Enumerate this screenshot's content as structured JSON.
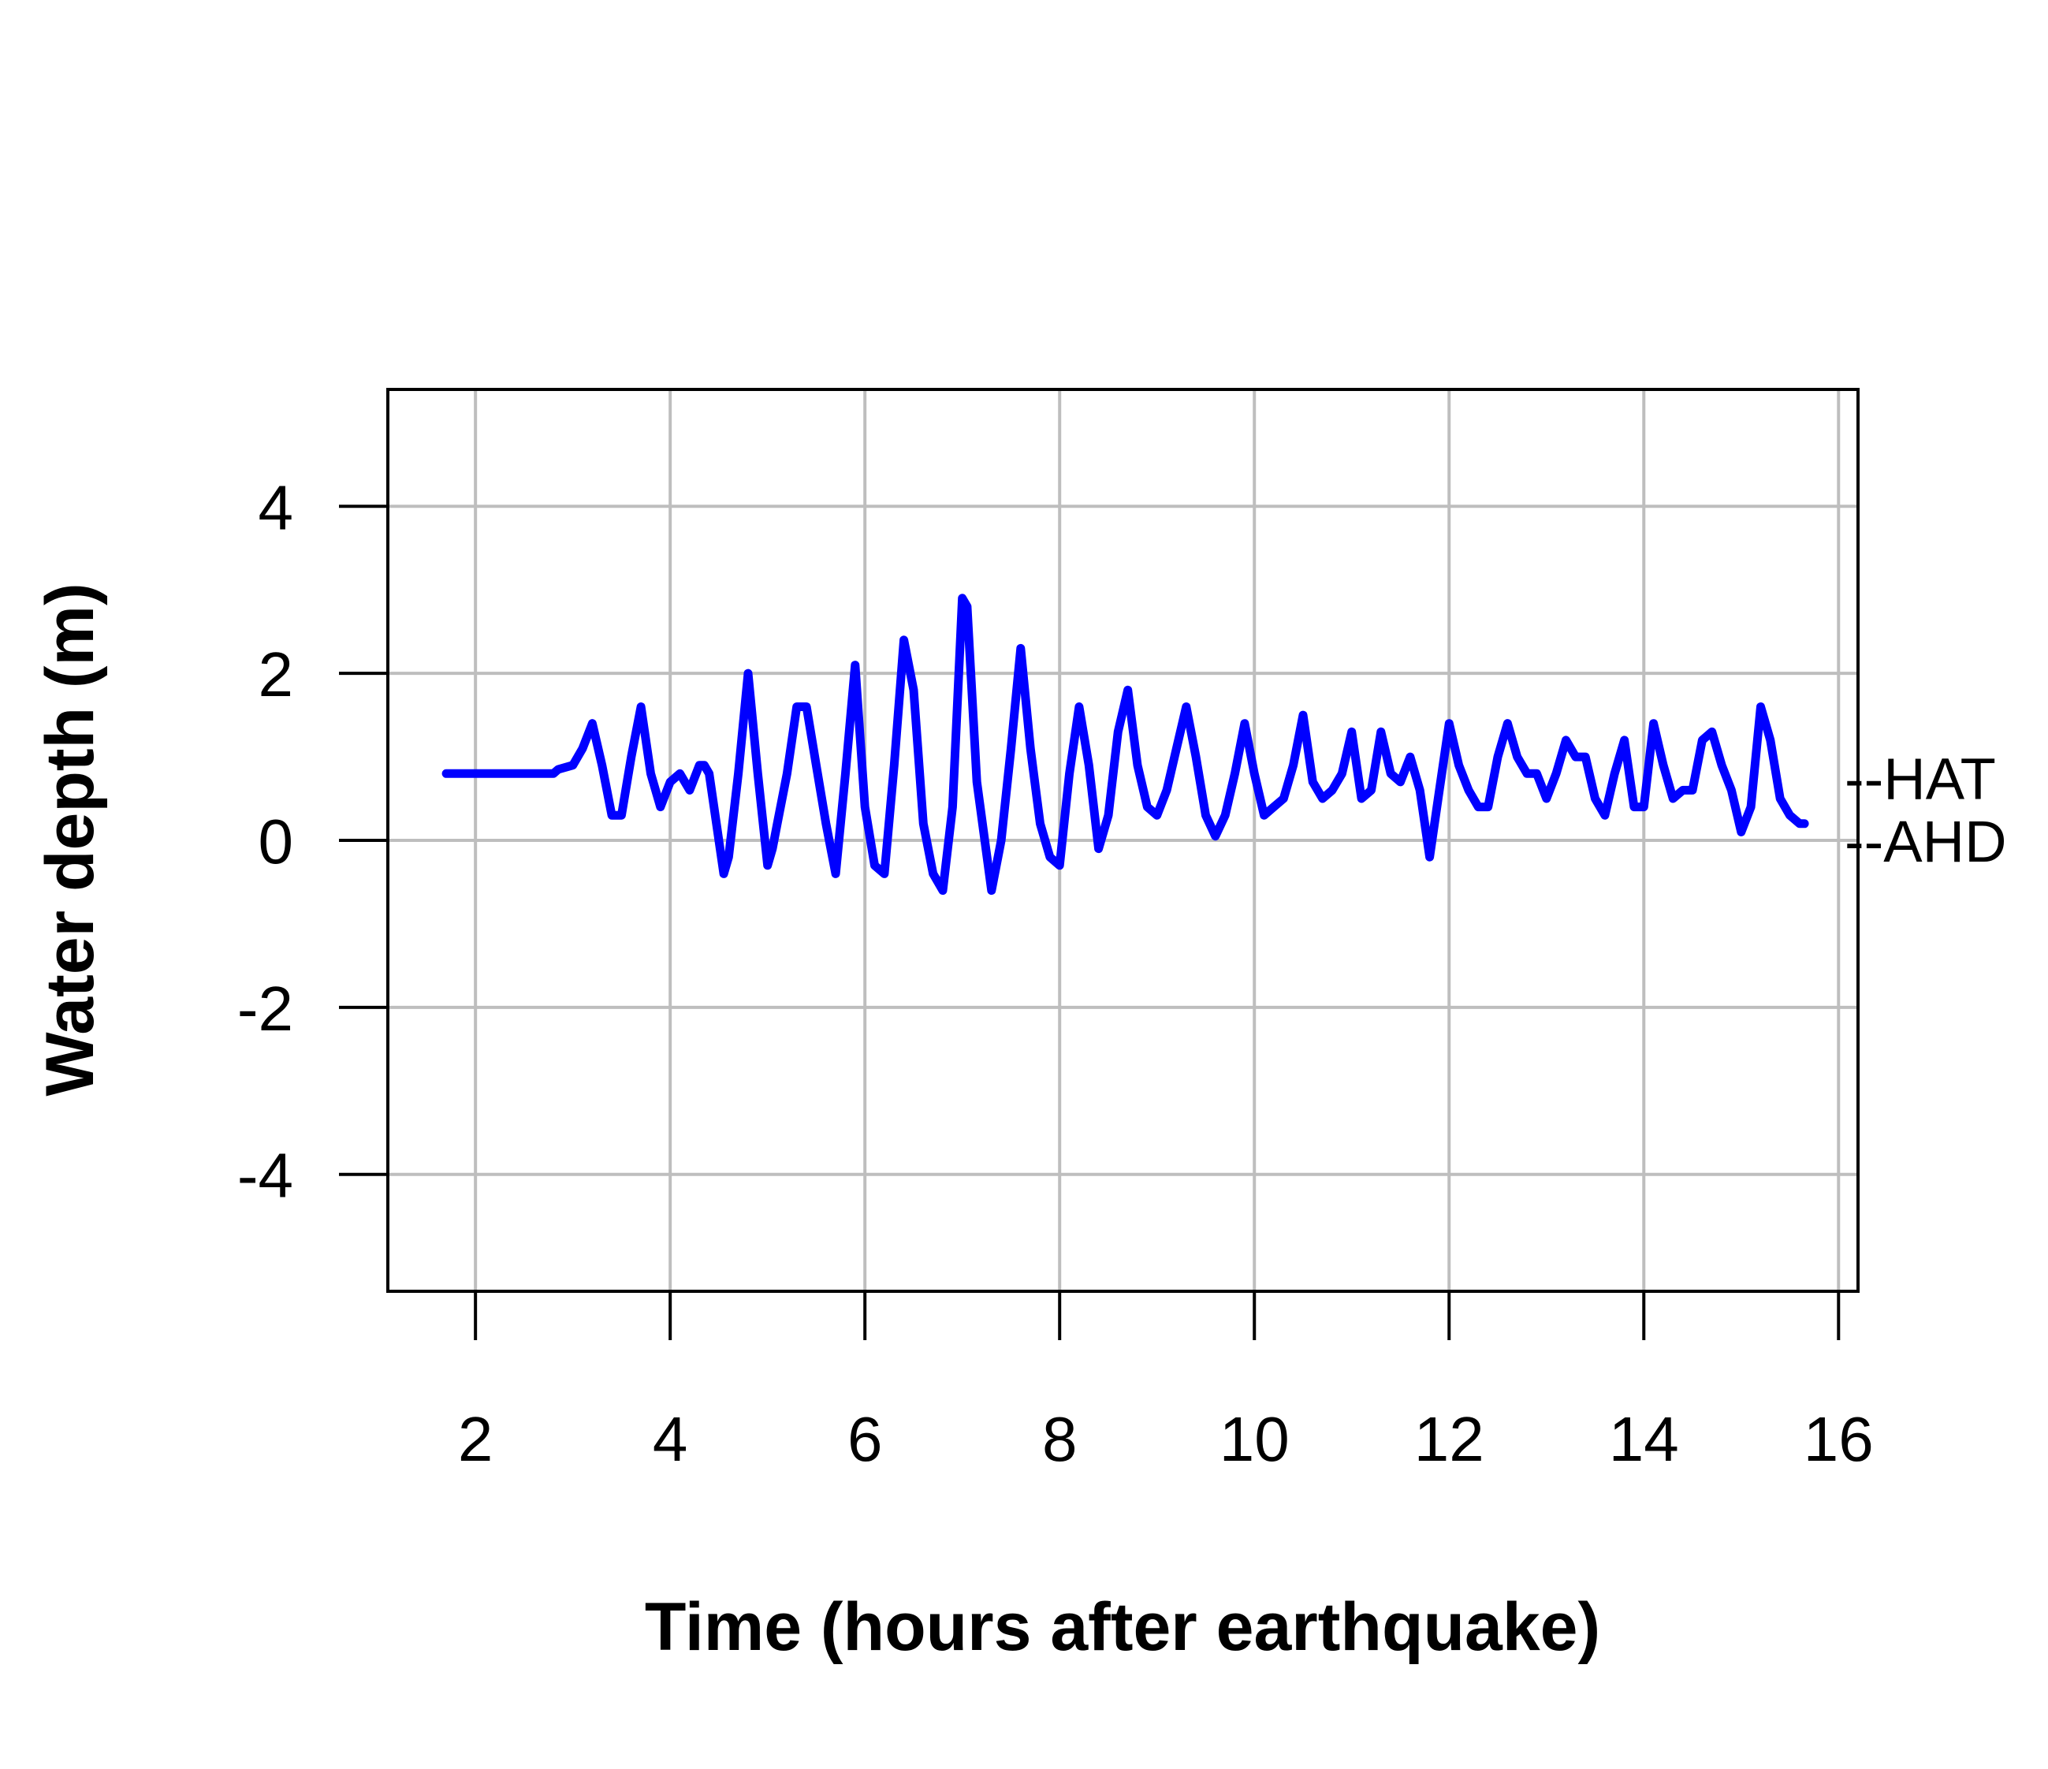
{
  "chart_data": {
    "type": "line",
    "title": "",
    "xlabel": "Time (hours after earthquake)",
    "ylabel": "Water depth (m)",
    "xlim": [
      1.1,
      16.2
    ],
    "ylim": [
      -5.4,
      5.4
    ],
    "xticks": [
      2,
      4,
      6,
      8,
      10,
      12,
      14,
      16
    ],
    "yticks": [
      4,
      2,
      0,
      -2,
      -4
    ],
    "xtick_labels": [
      "2",
      "4",
      "6",
      "8",
      "10",
      "12",
      "14",
      "16"
    ],
    "ytick_labels": [
      "4",
      "2",
      "0",
      "-2",
      "-4"
    ],
    "grid": true,
    "colors": {
      "line": "#0000ff",
      "grid": "#bebebe",
      "axis": "#000000"
    },
    "reference_lines": [
      {
        "label": "--HAT",
        "y": 0.75
      },
      {
        "label": "--AHD",
        "y": 0.0
      }
    ],
    "series": [
      {
        "x": [
          1.7,
          2.8,
          2.85,
          3.0,
          3.1,
          3.2,
          3.3,
          3.4,
          3.5,
          3.6,
          3.7,
          3.8,
          3.9,
          4.0,
          4.1,
          4.2,
          4.3,
          4.35,
          4.4,
          4.5,
          4.55,
          4.6,
          4.7,
          4.8,
          4.9,
          5.0,
          5.05,
          5.1,
          5.2,
          5.3,
          5.4,
          5.5,
          5.6,
          5.7,
          5.8,
          5.9,
          6.0,
          6.1,
          6.2,
          6.3,
          6.4,
          6.5,
          6.6,
          6.7,
          6.8,
          6.9,
          7.0,
          7.05,
          7.15,
          7.3,
          7.4,
          7.5,
          7.6,
          7.7,
          7.8,
          7.9,
          8.0,
          8.1,
          8.2,
          8.3,
          8.4,
          8.5,
          8.6,
          8.7,
          8.8,
          8.9,
          9.0,
          9.1,
          9.2,
          9.3,
          9.4,
          9.5,
          9.6,
          9.7,
          9.8,
          9.9,
          10.0,
          10.1,
          10.2,
          10.3,
          10.4,
          10.5,
          10.6,
          10.7,
          10.8,
          10.9,
          11.0,
          11.1,
          11.2,
          11.3,
          11.4,
          11.5,
          11.6,
          11.7,
          11.8,
          11.9,
          12.0,
          12.1,
          12.2,
          12.3,
          12.4,
          12.5,
          12.6,
          12.7,
          12.8,
          12.9,
          13.0,
          13.1,
          13.2,
          13.3,
          13.4,
          13.5,
          13.6,
          13.7,
          13.8,
          13.9,
          14.0,
          14.1,
          14.2,
          14.3,
          14.4,
          14.5,
          14.6,
          14.7,
          14.8,
          14.9,
          15.0,
          15.1,
          15.2,
          15.3,
          15.4,
          15.5,
          15.6,
          15.65
        ],
        "y": [
          0.8,
          0.8,
          0.85,
          0.9,
          1.1,
          1.4,
          0.9,
          0.3,
          0.3,
          1.0,
          1.6,
          0.8,
          0.4,
          0.7,
          0.8,
          0.6,
          0.9,
          0.9,
          0.8,
          0.0,
          -0.4,
          -0.2,
          0.8,
          2.0,
          0.8,
          -0.3,
          -0.1,
          0.2,
          0.8,
          1.6,
          1.6,
          0.9,
          0.2,
          -0.4,
          0.8,
          2.1,
          0.4,
          -0.3,
          -0.4,
          0.9,
          2.4,
          1.8,
          0.2,
          -0.4,
          -0.6,
          0.4,
          2.9,
          2.8,
          0.7,
          -0.6,
          0.0,
          1.1,
          2.3,
          1.1,
          0.2,
          -0.2,
          -0.3,
          0.8,
          1.6,
          0.9,
          -0.1,
          0.3,
          1.3,
          1.8,
          0.9,
          0.4,
          0.3,
          0.6,
          1.1,
          1.6,
          1.0,
          0.3,
          0.05,
          0.3,
          0.8,
          1.4,
          0.8,
          0.3,
          0.4,
          0.5,
          0.9,
          1.5,
          0.7,
          0.5,
          0.6,
          0.8,
          1.3,
          0.5,
          0.6,
          1.3,
          0.8,
          0.7,
          1.0,
          0.6,
          -0.2,
          0.6,
          1.4,
          0.9,
          0.6,
          0.4,
          0.4,
          1.0,
          1.4,
          1.0,
          0.8,
          0.8,
          0.5,
          0.8,
          1.2,
          1.0,
          1.0,
          0.5,
          0.3,
          0.8,
          1.2,
          0.4,
          0.4,
          1.4,
          0.9,
          0.5,
          0.6,
          0.6,
          1.2,
          1.3,
          0.9,
          0.6,
          0.1,
          0.4,
          1.6,
          1.2,
          0.5,
          0.3,
          0.2,
          0.2
        ]
      }
    ]
  }
}
